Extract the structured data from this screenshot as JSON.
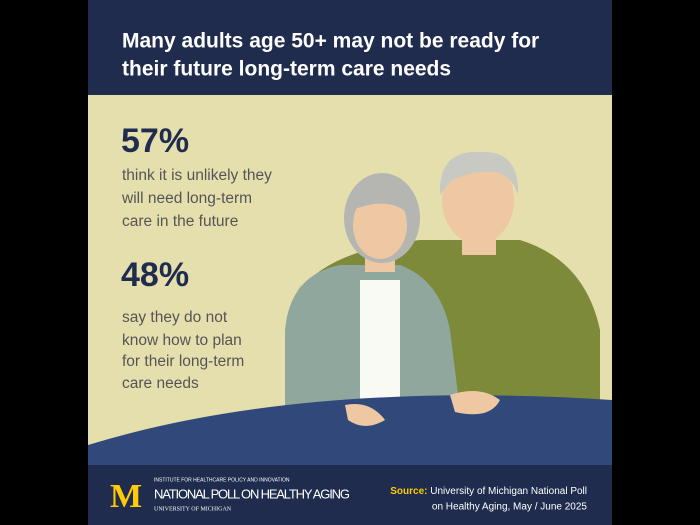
{
  "header": {
    "title_lines": [
      "Many adults age 50+ may not be ready for",
      "their future long-term care needs"
    ]
  },
  "stats": [
    {
      "figure": "57%",
      "lines": [
        "think it is unlikely they",
        "will need long-term",
        "care in the future"
      ]
    },
    {
      "figure": "48%",
      "lines": [
        "say they do not",
        "know how to plan",
        "for their long-term",
        "care needs"
      ]
    }
  ],
  "footer": {
    "logo": "M",
    "institute": "INSTITUTE FOR HEALTHCARE POLICY AND INNOVATION",
    "poll": "NATIONAL POLL ON HEALTHY AGING",
    "university": "UNIVERSITY OF MICHIGAN",
    "source_label": "Source:",
    "source_lines": [
      "University of Michigan National Poll",
      "on Healthy Aging, May / June 2025"
    ]
  }
}
